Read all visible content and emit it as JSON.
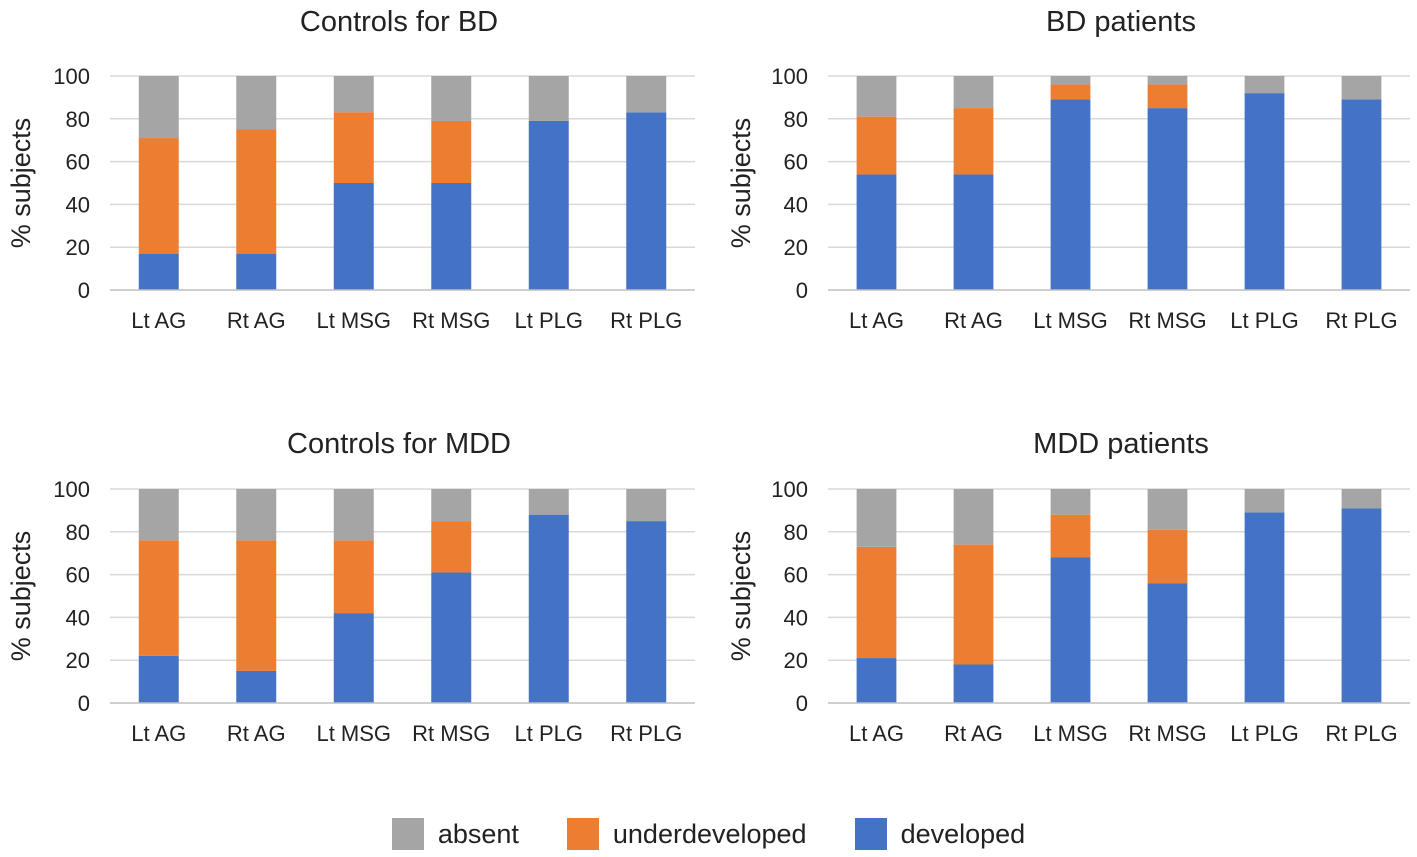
{
  "colors": {
    "developed": "#4472C4",
    "underdeveloped": "#ED7D31",
    "absent": "#A5A5A5",
    "grid": "#d9d9d9",
    "axis": "#bfbfbf",
    "text": "#222222"
  },
  "legend": [
    {
      "key": "absent",
      "label": "absent"
    },
    {
      "key": "underdeveloped",
      "label": "underdeveloped"
    },
    {
      "key": "developed",
      "label": "developed"
    }
  ],
  "chart_data": [
    {
      "type": "bar",
      "stacked": true,
      "title": "Controls for BD",
      "xlabel": "",
      "ylabel": "% subjects",
      "ylim": [
        0,
        100
      ],
      "yticks": [
        0,
        20,
        40,
        60,
        80,
        100
      ],
      "grid": true,
      "categories": [
        "Lt AG",
        "Rt AG",
        "Lt MSG",
        "Rt MSG",
        "Lt PLG",
        "Rt PLG"
      ],
      "series": [
        {
          "name": "developed",
          "values": [
            17,
            17,
            50,
            50,
            79,
            83
          ]
        },
        {
          "name": "underdeveloped",
          "values": [
            54,
            58,
            33,
            29,
            0,
            0
          ]
        },
        {
          "name": "absent",
          "values": [
            29,
            25,
            17,
            21,
            21,
            17
          ]
        }
      ]
    },
    {
      "type": "bar",
      "stacked": true,
      "title": "BD patients",
      "xlabel": "",
      "ylabel": "% subjects",
      "ylim": [
        0,
        100
      ],
      "yticks": [
        0,
        20,
        40,
        60,
        80,
        100
      ],
      "grid": true,
      "categories": [
        "Lt AG",
        "Rt AG",
        "Lt MSG",
        "Rt MSG",
        "Lt PLG",
        "Rt PLG"
      ],
      "series": [
        {
          "name": "developed",
          "values": [
            54,
            54,
            89,
            85,
            92,
            89
          ]
        },
        {
          "name": "underdeveloped",
          "values": [
            27,
            31,
            7,
            11,
            0,
            0
          ]
        },
        {
          "name": "absent",
          "values": [
            19,
            15,
            4,
            4,
            8,
            11
          ]
        }
      ]
    },
    {
      "type": "bar",
      "stacked": true,
      "title": "Controls for MDD",
      "xlabel": "",
      "ylabel": "% subjects",
      "ylim": [
        0,
        100
      ],
      "yticks": [
        0,
        20,
        40,
        60,
        80,
        100
      ],
      "grid": true,
      "categories": [
        "Lt AG",
        "Rt AG",
        "Lt MSG",
        "Rt MSG",
        "Lt PLG",
        "Rt PLG"
      ],
      "series": [
        {
          "name": "developed",
          "values": [
            22,
            15,
            42,
            61,
            88,
            85
          ]
        },
        {
          "name": "underdeveloped",
          "values": [
            54,
            61,
            34,
            24,
            0,
            0
          ]
        },
        {
          "name": "absent",
          "values": [
            24,
            24,
            24,
            15,
            12,
            15
          ]
        }
      ]
    },
    {
      "type": "bar",
      "stacked": true,
      "title": "MDD patients",
      "xlabel": "",
      "ylabel": "% subjects",
      "ylim": [
        0,
        100
      ],
      "yticks": [
        0,
        20,
        40,
        60,
        80,
        100
      ],
      "grid": true,
      "categories": [
        "Lt AG",
        "Rt AG",
        "Lt MSG",
        "Rt MSG",
        "Lt PLG",
        "Rt PLG"
      ],
      "series": [
        {
          "name": "developed",
          "values": [
            21,
            18,
            68,
            56,
            89,
            91
          ]
        },
        {
          "name": "underdeveloped",
          "values": [
            52,
            56,
            20,
            25,
            0,
            0
          ]
        },
        {
          "name": "absent",
          "values": [
            27,
            26,
            12,
            19,
            11,
            9
          ]
        }
      ]
    }
  ]
}
